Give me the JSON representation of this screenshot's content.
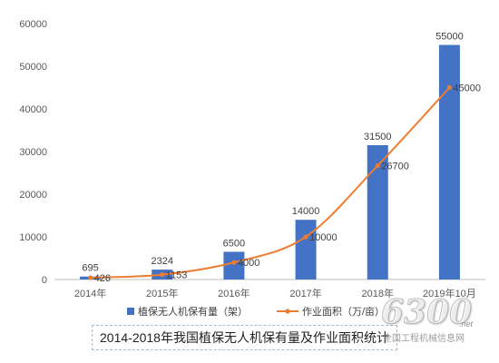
{
  "chart_data": {
    "type": "bar",
    "categories": [
      "2014年",
      "2015年",
      "2016年",
      "2017年",
      "2018年",
      "2019年10月"
    ],
    "series": [
      {
        "name": "植保无人机保有量（架）",
        "type": "bar",
        "color": "#4472c4",
        "values": [
          695,
          2324,
          6500,
          14000,
          31500,
          55000
        ],
        "labels": [
          "695",
          "2324",
          "6500",
          "14000",
          "31500",
          "55000"
        ]
      },
      {
        "name": "作业面积（万/亩）",
        "type": "line",
        "color": "#ed7d31",
        "values": [
          426,
          1153,
          4000,
          10000,
          26700,
          45000
        ],
        "labels": [
          "426",
          "1153",
          "4000",
          "10000",
          "26700",
          "45000"
        ]
      }
    ],
    "ylim": [
      0,
      60000
    ],
    "yticks": [
      "0",
      "10000",
      "20000",
      "30000",
      "40000",
      "50000",
      "60000"
    ],
    "grid": false,
    "legend_position": "bottom"
  },
  "caption": "2014-2018年我国植保无人机保有量及作业面积统计",
  "watermark": {
    "number": "6300",
    "suffix": ".net",
    "site": "全国工程机械信息网"
  }
}
